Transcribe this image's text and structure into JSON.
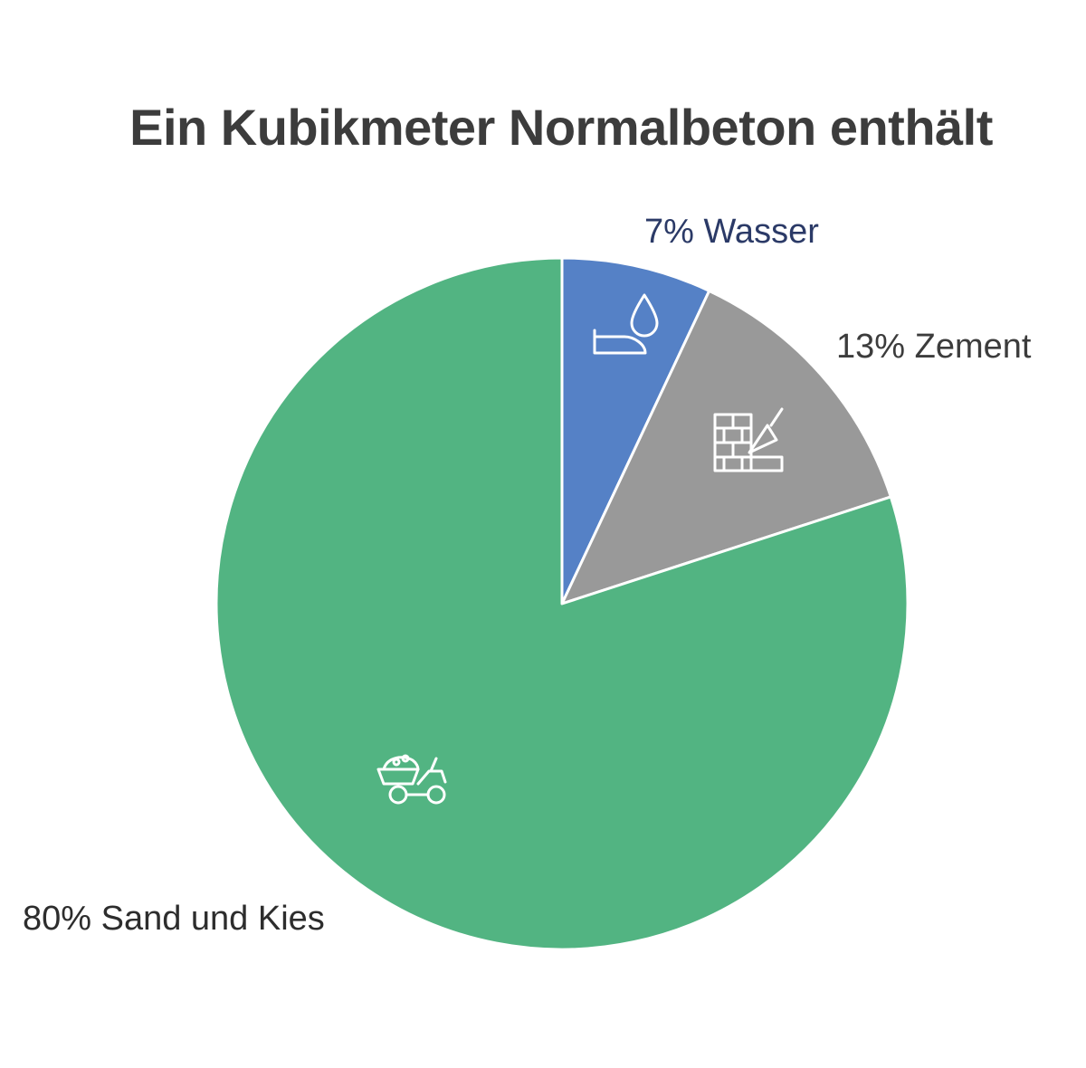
{
  "chart_data": {
    "type": "pie",
    "title": "Ein Kubikmeter Normalbeton enthält",
    "slices": [
      {
        "label": "7% Wasser",
        "value": 7,
        "color": "#5581c6",
        "label_color": "#2b3a67",
        "icon": "water-drop-hand-icon"
      },
      {
        "label": "13% Zement",
        "value": 13,
        "color": "#999999",
        "label_color": "#3c3c3c",
        "icon": "brick-wall-trowel-icon"
      },
      {
        "label": "80% Sand und Kies",
        "value": 80,
        "color": "#52b482",
        "label_color": "#2d2d2d",
        "icon": "wheelbarrow-icon"
      }
    ],
    "start": "12 o'clock",
    "direction": "clockwise",
    "legend": "none"
  }
}
